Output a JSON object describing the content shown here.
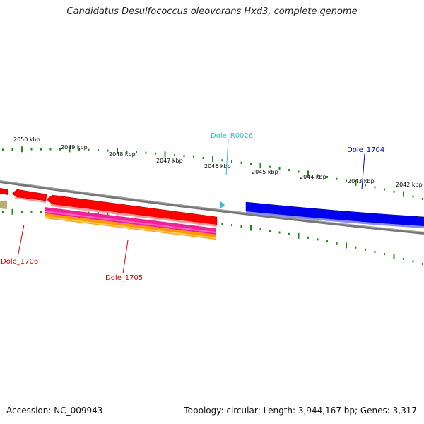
{
  "title": "Candidatus Desulfococcus oleovorans Hxd3, complete genome",
  "accession": "Accession: NC_009943",
  "summary": "Topology: circular; Length: 3,944,167 bp; Genes: 3,317",
  "ruler": {
    "labels": [
      "2050 kbp",
      "2049 kbp",
      "2048 kbp",
      "2047 kbp",
      "2046 kbp",
      "2045 kbp",
      "2044 kbp",
      "2043 kbp",
      "2042 kbp"
    ],
    "tick_color": "#1a8a1a"
  },
  "genes": [
    {
      "name": "Dole_R0026",
      "color": "#33bbdd"
    },
    {
      "name": "Dole_1704",
      "color": "#0000cc"
    },
    {
      "name": "Dole_1706",
      "color": "#dd0000"
    },
    {
      "name": "Dole_1705",
      "color": "#dd0000"
    }
  ],
  "colors": {
    "backbone": "#888888",
    "gene_red": "#ff0000",
    "gene_blue": "#0000ee",
    "cds_magenta": "#ee2299",
    "cds_orange": "#ff9900",
    "unknown_olive": "#b8b070",
    "trna_cyan": "#33bbdd"
  }
}
